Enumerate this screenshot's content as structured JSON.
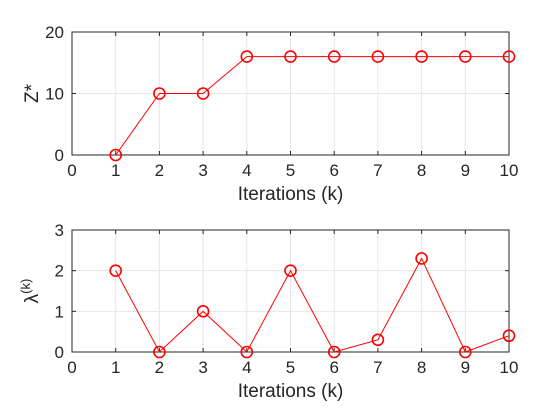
{
  "chart_data": [
    {
      "type": "line",
      "xlabel": "Iterations (k)",
      "ylabel": "Z*",
      "xlim": [
        0,
        10
      ],
      "ylim": [
        0,
        20
      ],
      "xticks": [
        0,
        1,
        2,
        3,
        4,
        5,
        6,
        7,
        8,
        9,
        10
      ],
      "yticks": [
        0,
        10,
        20
      ],
      "grid": true,
      "marker": "circle",
      "color": "#ff0000",
      "series": [
        {
          "x": [
            1,
            2,
            3,
            4,
            5,
            6,
            7,
            8,
            9,
            10
          ],
          "y": [
            0,
            10,
            10,
            16,
            16,
            16,
            16,
            16,
            16,
            16
          ]
        }
      ]
    },
    {
      "type": "line",
      "xlabel": "Iterations (k)",
      "ylabel": "λ",
      "ylabel_superscript": "(k)",
      "xlim": [
        0,
        10
      ],
      "ylim": [
        0,
        3
      ],
      "xticks": [
        0,
        1,
        2,
        3,
        4,
        5,
        6,
        7,
        8,
        9,
        10
      ],
      "yticks": [
        0,
        1,
        2,
        3
      ],
      "grid": true,
      "marker": "circle",
      "color": "#ff0000",
      "series": [
        {
          "x": [
            1,
            2,
            3,
            4,
            5,
            6,
            7,
            8,
            9,
            10
          ],
          "y": [
            2.0,
            0,
            1.0,
            0,
            2.0,
            0,
            0.3,
            2.3,
            0,
            0.4
          ]
        }
      ]
    }
  ]
}
